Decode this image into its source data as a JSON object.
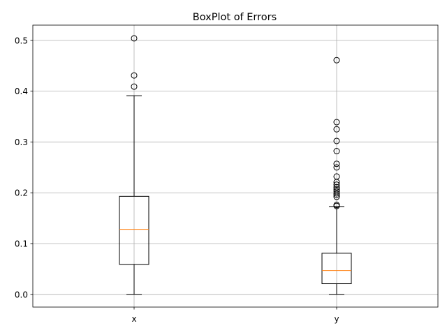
{
  "chart_data": {
    "type": "box",
    "title": "BoxPlot of Errors",
    "xlabel": "",
    "ylabel": "",
    "ylim": [
      -0.025,
      0.53
    ],
    "yticks": [
      0.0,
      0.1,
      0.2,
      0.3,
      0.4,
      0.5
    ],
    "ytick_labels": [
      "0.0",
      "0.1",
      "0.2",
      "0.3",
      "0.4",
      "0.5"
    ],
    "grid": true,
    "series": [
      {
        "label": "x",
        "whisker_low": 0.0,
        "q1": 0.059,
        "median": 0.128,
        "q3": 0.193,
        "whisker_high": 0.391,
        "outliers": [
          0.409,
          0.431,
          0.504
        ]
      },
      {
        "label": "y",
        "whisker_low": 0.0,
        "q1": 0.021,
        "median": 0.047,
        "q3": 0.081,
        "whisker_high": 0.173,
        "outliers": [
          0.174,
          0.176,
          0.192,
          0.196,
          0.199,
          0.203,
          0.207,
          0.211,
          0.216,
          0.221,
          0.232,
          0.25,
          0.257,
          0.282,
          0.302,
          0.325,
          0.339,
          0.461
        ]
      }
    ],
    "colors": {
      "box": "#000000",
      "median": "#ff7f0e",
      "grid": "#b0b0b0"
    }
  }
}
